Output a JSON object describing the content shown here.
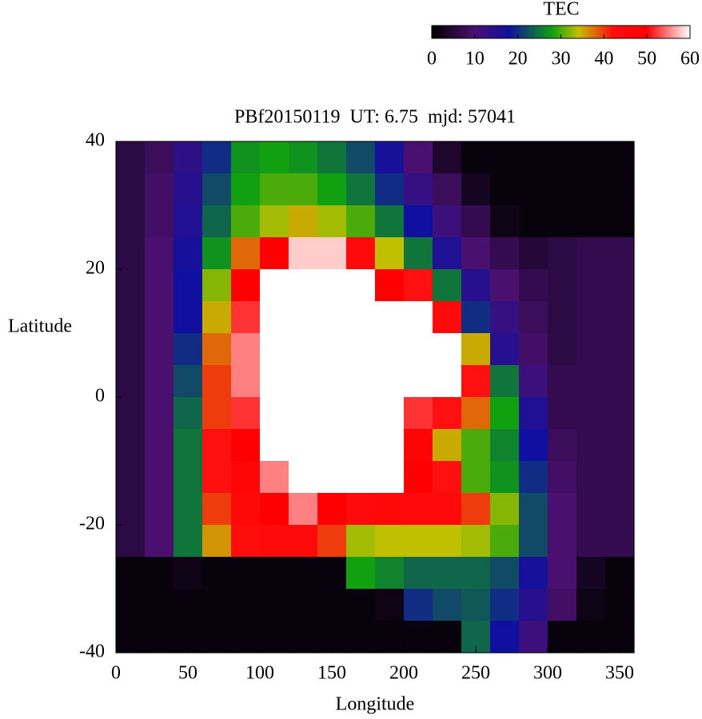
{
  "chart_data": {
    "type": "heatmap",
    "title": "PBf20150119  UT: 6.75  mjd: 57041",
    "xlabel": "Longitude",
    "ylabel": "Latitude",
    "colorbar_label": "TEC",
    "xlim": [
      0,
      360
    ],
    "ylim": [
      -40,
      40
    ],
    "xticks": [
      0,
      50,
      100,
      150,
      200,
      250,
      300,
      350
    ],
    "yticks": [
      -40,
      -20,
      0,
      20,
      40
    ],
    "clim": [
      0,
      60
    ],
    "cticks": [
      0,
      10,
      20,
      30,
      40,
      50,
      60
    ],
    "colormap": [
      [
        0,
        "#000000"
      ],
      [
        10,
        "#4a1070"
      ],
      [
        18,
        "#1010a0"
      ],
      [
        28,
        "#10a010"
      ],
      [
        34,
        "#c0c000"
      ],
      [
        42,
        "#ff1010"
      ],
      [
        50,
        "#ff0000"
      ],
      [
        60,
        "#ffffff"
      ]
    ],
    "x": [
      10,
      30,
      50,
      70,
      90,
      110,
      130,
      150,
      170,
      190,
      210,
      230,
      250,
      270,
      290,
      310,
      330,
      350
    ],
    "y": [
      37.5,
      32.5,
      27.5,
      22.5,
      17.5,
      12.5,
      7.5,
      2.5,
      -2.5,
      -7.5,
      -12.5,
      -17.5,
      -22.5,
      -27.5,
      -32.5,
      -37.5
    ],
    "z": [
      [
        6,
        8,
        14,
        20,
        27,
        28,
        27,
        25,
        22,
        17,
        10,
        4,
        1,
        1,
        1,
        1,
        1,
        1
      ],
      [
        6,
        9,
        15,
        22,
        28,
        30,
        30,
        28,
        25,
        20,
        13,
        8,
        3,
        1,
        1,
        1,
        1,
        1
      ],
      [
        6,
        9,
        16,
        24,
        30,
        33,
        35,
        33,
        30,
        25,
        18,
        12,
        7,
        2,
        1,
        1,
        1,
        1
      ],
      [
        6,
        10,
        17,
        27,
        38,
        50,
        58,
        58,
        45,
        34,
        25,
        16,
        10,
        7,
        5,
        6,
        7,
        7
      ],
      [
        6,
        10,
        18,
        32,
        50,
        60,
        60,
        60,
        60,
        50,
        42,
        25,
        15,
        10,
        7,
        6,
        7,
        7
      ],
      [
        6,
        10,
        18,
        35,
        52,
        60,
        60,
        60,
        60,
        60,
        60,
        45,
        20,
        13,
        8,
        6,
        7,
        7
      ],
      [
        6,
        10,
        20,
        38,
        55,
        60,
        60,
        60,
        60,
        60,
        60,
        60,
        35,
        15,
        9,
        6,
        7,
        7
      ],
      [
        6,
        10,
        22,
        40,
        55,
        60,
        60,
        60,
        60,
        60,
        60,
        60,
        42,
        25,
        12,
        7,
        7,
        7
      ],
      [
        6,
        10,
        24,
        40,
        52,
        60,
        60,
        60,
        60,
        60,
        52,
        42,
        38,
        28,
        16,
        7,
        7,
        7
      ],
      [
        6,
        10,
        25,
        42,
        50,
        60,
        60,
        60,
        60,
        60,
        48,
        35,
        30,
        26,
        18,
        8,
        7,
        7
      ],
      [
        6,
        10,
        25,
        42,
        47,
        55,
        60,
        60,
        60,
        60,
        50,
        42,
        30,
        27,
        20,
        9,
        7,
        7
      ],
      [
        6,
        10,
        25,
        40,
        46,
        50,
        55,
        50,
        45,
        46,
        45,
        45,
        40,
        32,
        22,
        10,
        7,
        7
      ],
      [
        6,
        10,
        25,
        36,
        44,
        45,
        45,
        40,
        33,
        34,
        34,
        34,
        33,
        30,
        22,
        10,
        7,
        7
      ],
      [
        1,
        1,
        2,
        1,
        1,
        1,
        1,
        1,
        28,
        26,
        24,
        24,
        24,
        22,
        17,
        10,
        3,
        1
      ],
      [
        1,
        1,
        1,
        1,
        1,
        1,
        1,
        1,
        1,
        2,
        20,
        22,
        23,
        20,
        15,
        9,
        2,
        1
      ],
      [
        1,
        1,
        1,
        1,
        1,
        1,
        1,
        1,
        1,
        1,
        1,
        1,
        24,
        18,
        12,
        1,
        1,
        1
      ]
    ]
  }
}
